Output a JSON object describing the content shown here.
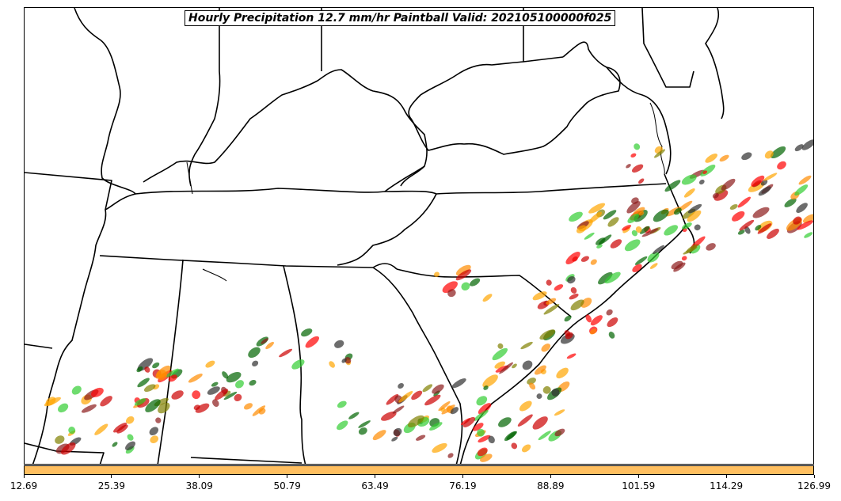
{
  "title": "Hourly Precipitation 12.7 mm/hr Paintball Valid: 202105100000f025",
  "colorbar": {
    "color": "#ffbf60",
    "ticks": [
      "12.69",
      "25.39",
      "38.09",
      "50.79",
      "63.49",
      "76.19",
      "88.89",
      "101.59",
      "114.29",
      "126.99"
    ]
  },
  "member_colors": [
    "#ff0000",
    "#cc0000",
    "#8b1a1a",
    "#ff8c00",
    "#ffa500",
    "#808000",
    "#006400",
    "#32cd32",
    "#2f2f2f"
  ]
}
